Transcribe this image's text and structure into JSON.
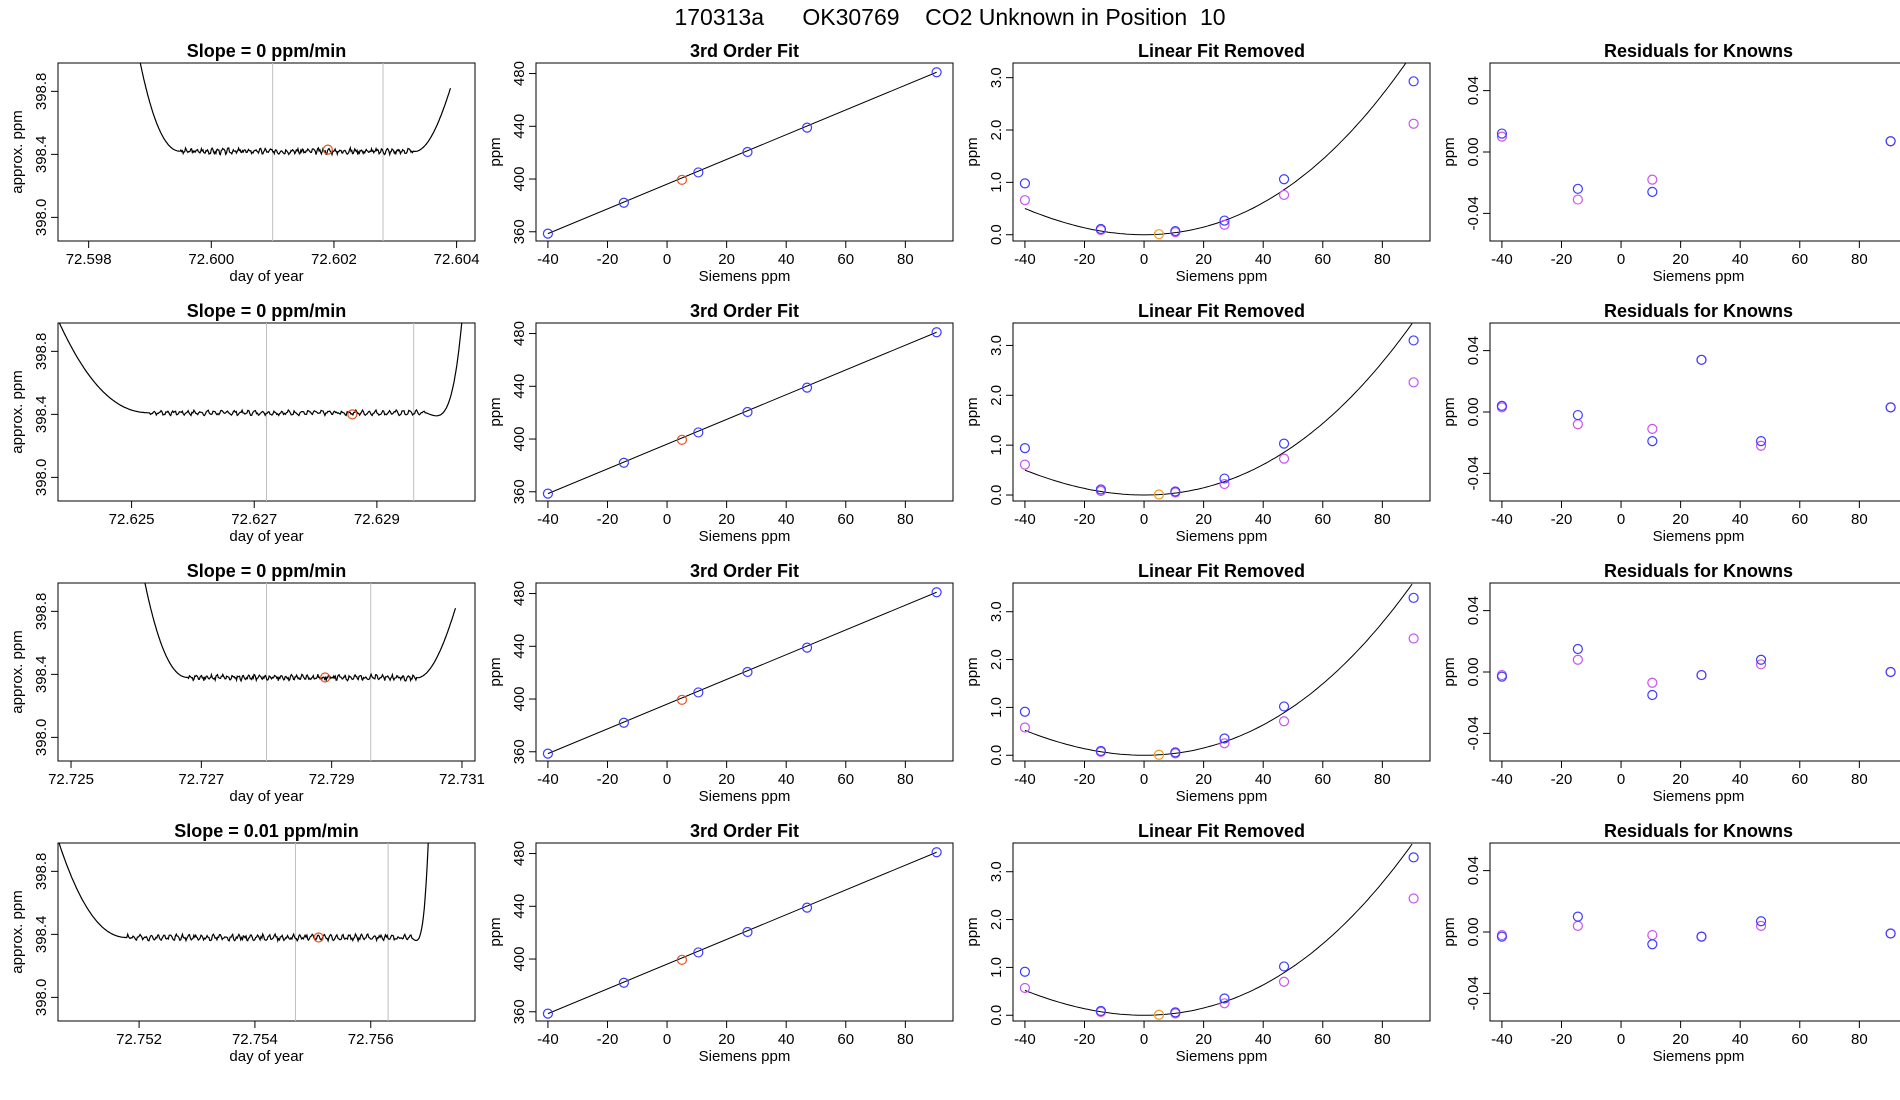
{
  "page_title": "170313a      OK30769    CO2 Unknown in Position  10",
  "colors": {
    "line": "#000000",
    "grid": "#bfbfbf",
    "known": "#3c3cff",
    "fit_point": "#c855f0",
    "unknown_fit": "#e6501e",
    "unknown_linear": "#f09a1e",
    "unknown_trace": "#e6501e"
  },
  "chart_data": [
    {
      "row": 0,
      "type": "line",
      "title": "Slope =  0  ppm/min",
      "xlabel": "day of year",
      "ylabel": "approx. ppm",
      "xlim": [
        72.5975,
        72.6043
      ],
      "ylim": [
        397.85,
        398.98
      ],
      "xticks": [
        "72.598",
        "72.600",
        "72.602",
        "72.604"
      ],
      "yticks": [
        "398.0",
        "398.4",
        "398.8"
      ],
      "vlines": [
        72.601,
        72.6028
      ],
      "marker": {
        "x": 72.6019,
        "y": 398.43
      },
      "trace": {
        "x0": 72.5987,
        "x1": 72.6039,
        "t_flat0": 72.5995,
        "t_flat1": 72.6033,
        "plateau": 398.42,
        "amp": 0.012,
        "seed": 3,
        "end_y": 398.82,
        "end_pow": 1.6
      }
    },
    {
      "row": 0,
      "type": "scatter",
      "title": "3rd Order Fit",
      "xlabel": "Siemens ppm",
      "ylabel": "ppm",
      "xlim": [
        -44,
        96
      ],
      "ylim": [
        353,
        488
      ],
      "xticks": [
        "-40",
        "-20",
        "0",
        "20",
        "40",
        "60",
        "80"
      ],
      "yticks": [
        "360",
        "400",
        "440",
        "480"
      ],
      "line": [
        [
          -40,
          358.6
        ],
        [
          90.5,
          481.0
        ]
      ],
      "knowns": [
        [
          -40,
          358.6
        ],
        [
          -14.5,
          382.0
        ],
        [
          10.5,
          405.0
        ],
        [
          27,
          420.5
        ],
        [
          47,
          439.0
        ],
        [
          90.5,
          481.0
        ]
      ],
      "unknown": [
        5,
        399.4
      ]
    },
    {
      "row": 0,
      "type": "scatter",
      "title": "Linear Fit Removed",
      "xlabel": "Siemens ppm",
      "ylabel": "ppm",
      "xlim": [
        -44,
        96
      ],
      "ylim": [
        -0.12,
        3.28
      ],
      "xticks": [
        "-40",
        "-20",
        "0",
        "20",
        "40",
        "60",
        "80"
      ],
      "yticks": [
        "0.0",
        "1.0",
        "2.0",
        "3.0"
      ],
      "curve": {
        "k": 0.000338,
        "p": 1.03
      },
      "knowns": [
        [
          -40,
          0.98
        ],
        [
          -14.5,
          0.11
        ],
        [
          10.5,
          0.07
        ],
        [
          27,
          0.27
        ],
        [
          47,
          1.06
        ],
        [
          90.5,
          2.93
        ]
      ],
      "fits": [
        [
          -40,
          0.66
        ],
        [
          -14.5,
          0.09
        ],
        [
          10.5,
          0.05
        ],
        [
          27,
          0.19
        ],
        [
          47,
          0.76
        ],
        [
          90.5,
          2.12
        ]
      ],
      "unknown": [
        5,
        0.01
      ]
    },
    {
      "row": 0,
      "type": "scatter",
      "title": "Residuals for Knowns",
      "xlabel": "Siemens ppm",
      "ylabel": "ppm",
      "xlim": [
        -44,
        96
      ],
      "ylim": [
        -0.058,
        0.058
      ],
      "xticks": [
        "-40",
        "-20",
        "0",
        "20",
        "40",
        "60",
        "80"
      ],
      "yticks": [
        "-0.04",
        "0.00",
        "0.04"
      ],
      "knowns": [
        [
          -40,
          0.012
        ],
        [
          -14.5,
          -0.024
        ],
        [
          10.5,
          -0.026
        ],
        [
          90.5,
          0.007
        ]
      ],
      "fits": [
        [
          -40,
          0.01
        ],
        [
          -14.5,
          -0.031
        ],
        [
          10.5,
          -0.018
        ],
        [
          90.5,
          0.007
        ]
      ]
    },
    {
      "row": 1,
      "type": "line",
      "title": "Slope =  0  ppm/min",
      "xlabel": "day of year",
      "ylabel": "approx. ppm",
      "xlim": [
        72.6238,
        72.6306
      ],
      "ylim": [
        397.85,
        398.98
      ],
      "xticks": [
        "72.625",
        "72.627",
        "72.629"
      ],
      "yticks": [
        "398.0",
        "398.4",
        "398.8"
      ],
      "vlines": [
        72.6272,
        72.6296
      ],
      "marker": {
        "x": 72.6286,
        "y": 398.4
      },
      "trace": {
        "x0": 72.6238,
        "x1": 72.6304,
        "t_flat0": 72.6253,
        "t_flat1": 72.6298,
        "plateau": 398.41,
        "amp": 0.01,
        "seed": 7,
        "start_y": 399.0,
        "end_y": 399.05,
        "end_pow": 4
      }
    },
    {
      "row": 1,
      "type": "scatter",
      "title": "3rd Order Fit",
      "xlabel": "Siemens ppm",
      "ylabel": "ppm",
      "xlim": [
        -44,
        96
      ],
      "ylim": [
        353,
        488
      ],
      "xticks": [
        "-40",
        "-20",
        "0",
        "20",
        "40",
        "60",
        "80"
      ],
      "yticks": [
        "360",
        "400",
        "440",
        "480"
      ],
      "line": [
        [
          -40,
          358.6
        ],
        [
          90.5,
          481.0
        ]
      ],
      "knowns": [
        [
          -40,
          358.6
        ],
        [
          -14.5,
          382.0
        ],
        [
          10.5,
          405.0
        ],
        [
          27,
          420.5
        ],
        [
          47,
          439.0
        ],
        [
          90.5,
          481.0
        ]
      ],
      "unknown": [
        5,
        399.4
      ]
    },
    {
      "row": 1,
      "type": "scatter",
      "title": "Linear Fit Removed",
      "xlabel": "Siemens ppm",
      "ylabel": "ppm",
      "xlim": [
        -44,
        96
      ],
      "ylim": [
        -0.12,
        3.45
      ],
      "xticks": [
        "-40",
        "-20",
        "0",
        "20",
        "40",
        "60",
        "80"
      ],
      "yticks": [
        "0.0",
        "1.0",
        "2.0",
        "3.0"
      ],
      "curve": {
        "k": 0.000365,
        "p": 0.95
      },
      "knowns": [
        [
          -40,
          0.94
        ],
        [
          -14.5,
          0.11
        ],
        [
          10.5,
          0.07
        ],
        [
          27,
          0.33
        ],
        [
          47,
          1.03
        ],
        [
          90.5,
          3.1
        ]
      ],
      "fits": [
        [
          -40,
          0.61
        ],
        [
          -14.5,
          0.08
        ],
        [
          10.5,
          0.05
        ],
        [
          27,
          0.22
        ],
        [
          47,
          0.73
        ],
        [
          90.5,
          2.26
        ]
      ],
      "unknown": [
        5,
        0.01
      ]
    },
    {
      "row": 1,
      "type": "scatter",
      "title": "Residuals for Knowns",
      "xlabel": "Siemens ppm",
      "ylabel": "ppm",
      "xlim": [
        -44,
        96
      ],
      "ylim": [
        -0.058,
        0.058
      ],
      "xticks": [
        "-40",
        "-20",
        "0",
        "20",
        "40",
        "60",
        "80"
      ],
      "yticks": [
        "-0.04",
        "0.00",
        "0.04"
      ],
      "knowns": [
        [
          -40,
          0.004
        ],
        [
          -14.5,
          -0.002
        ],
        [
          10.5,
          -0.019
        ],
        [
          27,
          0.034
        ],
        [
          47,
          -0.019
        ],
        [
          90.5,
          0.003
        ]
      ],
      "fits": [
        [
          -40,
          0.003
        ],
        [
          -14.5,
          -0.008
        ],
        [
          10.5,
          -0.011
        ],
        [
          27,
          0.034
        ],
        [
          47,
          -0.022
        ],
        [
          90.5,
          0.003
        ]
      ]
    },
    {
      "row": 2,
      "type": "line",
      "title": "Slope =  0  ppm/min",
      "xlabel": "day of year",
      "ylabel": "approx. ppm",
      "xlim": [
        72.7248,
        72.7312
      ],
      "ylim": [
        397.85,
        398.98
      ],
      "xticks": [
        "72.725",
        "72.727",
        "72.729",
        "72.731"
      ],
      "yticks": [
        "398.0",
        "398.4",
        "398.8"
      ],
      "vlines": [
        72.728,
        72.7296
      ],
      "marker": {
        "x": 72.7289,
        "y": 398.38
      },
      "trace": {
        "x0": 72.726,
        "x1": 72.7309,
        "t_flat0": 72.7268,
        "t_flat1": 72.7303,
        "plateau": 398.38,
        "amp": 0.012,
        "seed": 11,
        "end_y": 398.82,
        "end_pow": 1.6
      }
    },
    {
      "row": 2,
      "type": "scatter",
      "title": "3rd Order Fit",
      "xlabel": "Siemens ppm",
      "ylabel": "ppm",
      "xlim": [
        -44,
        96
      ],
      "ylim": [
        353,
        488
      ],
      "xticks": [
        "-40",
        "-20",
        "0",
        "20",
        "40",
        "60",
        "80"
      ],
      "yticks": [
        "360",
        "400",
        "440",
        "480"
      ],
      "line": [
        [
          -40,
          358.6
        ],
        [
          90.5,
          481.0
        ]
      ],
      "knowns": [
        [
          -40,
          358.6
        ],
        [
          -14.5,
          382.0
        ],
        [
          10.5,
          405.0
        ],
        [
          27,
          420.5
        ],
        [
          47,
          439.0
        ],
        [
          90.5,
          481.0
        ]
      ],
      "unknown": [
        5,
        399.4
      ]
    },
    {
      "row": 2,
      "type": "scatter",
      "title": "Linear Fit Removed",
      "xlabel": "Siemens ppm",
      "ylabel": "ppm",
      "xlim": [
        -44,
        96
      ],
      "ylim": [
        -0.12,
        3.6
      ],
      "xticks": [
        "-40",
        "-20",
        "0",
        "20",
        "40",
        "60",
        "80"
      ],
      "yticks": [
        "0.0",
        "1.0",
        "2.0",
        "3.0"
      ],
      "curve": {
        "k": 0.000392,
        "p": 0.92
      },
      "knowns": [
        [
          -40,
          0.91
        ],
        [
          -14.5,
          0.09
        ],
        [
          10.5,
          0.06
        ],
        [
          27,
          0.35
        ],
        [
          47,
          1.02
        ],
        [
          90.5,
          3.29
        ]
      ],
      "fits": [
        [
          -40,
          0.58
        ],
        [
          -14.5,
          0.07
        ],
        [
          10.5,
          0.04
        ],
        [
          27,
          0.25
        ],
        [
          47,
          0.71
        ],
        [
          90.5,
          2.44
        ]
      ],
      "unknown": [
        5,
        0.01
      ]
    },
    {
      "row": 2,
      "type": "scatter",
      "title": "Residuals for Knowns",
      "xlabel": "Siemens ppm",
      "ylabel": "ppm",
      "xlim": [
        -44,
        96
      ],
      "ylim": [
        -0.058,
        0.058
      ],
      "xticks": [
        "-40",
        "-20",
        "0",
        "20",
        "40",
        "60",
        "80"
      ],
      "yticks": [
        "-0.04",
        "0.00",
        "0.04"
      ],
      "knowns": [
        [
          -40,
          -0.003
        ],
        [
          -14.5,
          0.015
        ],
        [
          10.5,
          -0.015
        ],
        [
          27,
          -0.002
        ],
        [
          47,
          0.008
        ],
        [
          90.5,
          0.0
        ]
      ],
      "fits": [
        [
          -40,
          -0.002
        ],
        [
          -14.5,
          0.008
        ],
        [
          10.5,
          -0.007
        ],
        [
          27,
          -0.002
        ],
        [
          47,
          0.005
        ],
        [
          90.5,
          0.0
        ]
      ]
    },
    {
      "row": 3,
      "type": "line",
      "title": "Slope =  0.01  ppm/min",
      "xlabel": "day of year",
      "ylabel": "approx. ppm",
      "xlim": [
        72.7506,
        72.7578
      ],
      "ylim": [
        397.85,
        398.98
      ],
      "xticks": [
        "72.752",
        "72.754",
        "72.756"
      ],
      "yticks": [
        "398.0",
        "398.4",
        "398.8"
      ],
      "vlines": [
        72.7547,
        72.7563
      ],
      "marker": {
        "x": 72.7551,
        "y": 398.38
      },
      "trace": {
        "x0": 72.7506,
        "x1": 72.757,
        "t_flat0": 72.7518,
        "t_flat1": 72.7567,
        "plateau": 398.38,
        "amp": 0.012,
        "seed": 19,
        "start_y": 399.0,
        "end_y": 399.05,
        "end_pow": 4
      }
    },
    {
      "row": 3,
      "type": "scatter",
      "title": "3rd Order Fit",
      "xlabel": "Siemens ppm",
      "ylabel": "ppm",
      "xlim": [
        -44,
        96
      ],
      "ylim": [
        353,
        488
      ],
      "xticks": [
        "-40",
        "-20",
        "0",
        "20",
        "40",
        "60",
        "80"
      ],
      "yticks": [
        "360",
        "400",
        "440",
        "480"
      ],
      "line": [
        [
          -40,
          358.6
        ],
        [
          90.5,
          481.0
        ]
      ],
      "knowns": [
        [
          -40,
          358.6
        ],
        [
          -14.5,
          382.0
        ],
        [
          10.5,
          405.0
        ],
        [
          27,
          420.5
        ],
        [
          47,
          439.0
        ],
        [
          90.5,
          481.0
        ]
      ],
      "unknown": [
        5,
        399.4
      ]
    },
    {
      "row": 3,
      "type": "scatter",
      "title": "Linear Fit Removed",
      "xlabel": "Siemens ppm",
      "ylabel": "ppm",
      "xlim": [
        -44,
        96
      ],
      "ylim": [
        -0.12,
        3.6
      ],
      "xticks": [
        "-40",
        "-20",
        "0",
        "20",
        "40",
        "60",
        "80"
      ],
      "yticks": [
        "0.0",
        "1.0",
        "2.0",
        "3.0"
      ],
      "curve": {
        "k": 0.000392,
        "p": 0.92
      },
      "knowns": [
        [
          -40,
          0.91
        ],
        [
          -14.5,
          0.09
        ],
        [
          10.5,
          0.06
        ],
        [
          27,
          0.35
        ],
        [
          47,
          1.02
        ],
        [
          90.5,
          3.3
        ]
      ],
      "fits": [
        [
          -40,
          0.57
        ],
        [
          -14.5,
          0.07
        ],
        [
          10.5,
          0.04
        ],
        [
          27,
          0.25
        ],
        [
          47,
          0.7
        ],
        [
          90.5,
          2.44
        ]
      ],
      "unknown": [
        5,
        0.01
      ]
    },
    {
      "row": 3,
      "type": "scatter",
      "title": "Residuals for Knowns",
      "xlabel": "Siemens ppm",
      "ylabel": "ppm",
      "xlim": [
        -44,
        96
      ],
      "ylim": [
        -0.058,
        0.058
      ],
      "xticks": [
        "-40",
        "-20",
        "0",
        "20",
        "40",
        "60",
        "80"
      ],
      "yticks": [
        "-0.04",
        "0.00",
        "0.04"
      ],
      "knowns": [
        [
          -40,
          -0.003
        ],
        [
          -14.5,
          0.01
        ],
        [
          10.5,
          -0.008
        ],
        [
          27,
          -0.003
        ],
        [
          47,
          0.007
        ],
        [
          90.5,
          -0.001
        ]
      ],
      "fits": [
        [
          -40,
          -0.002
        ],
        [
          -14.5,
          0.004
        ],
        [
          10.5,
          -0.002
        ],
        [
          27,
          -0.003
        ],
        [
          47,
          0.004
        ],
        [
          90.5,
          -0.001
        ]
      ]
    }
  ]
}
